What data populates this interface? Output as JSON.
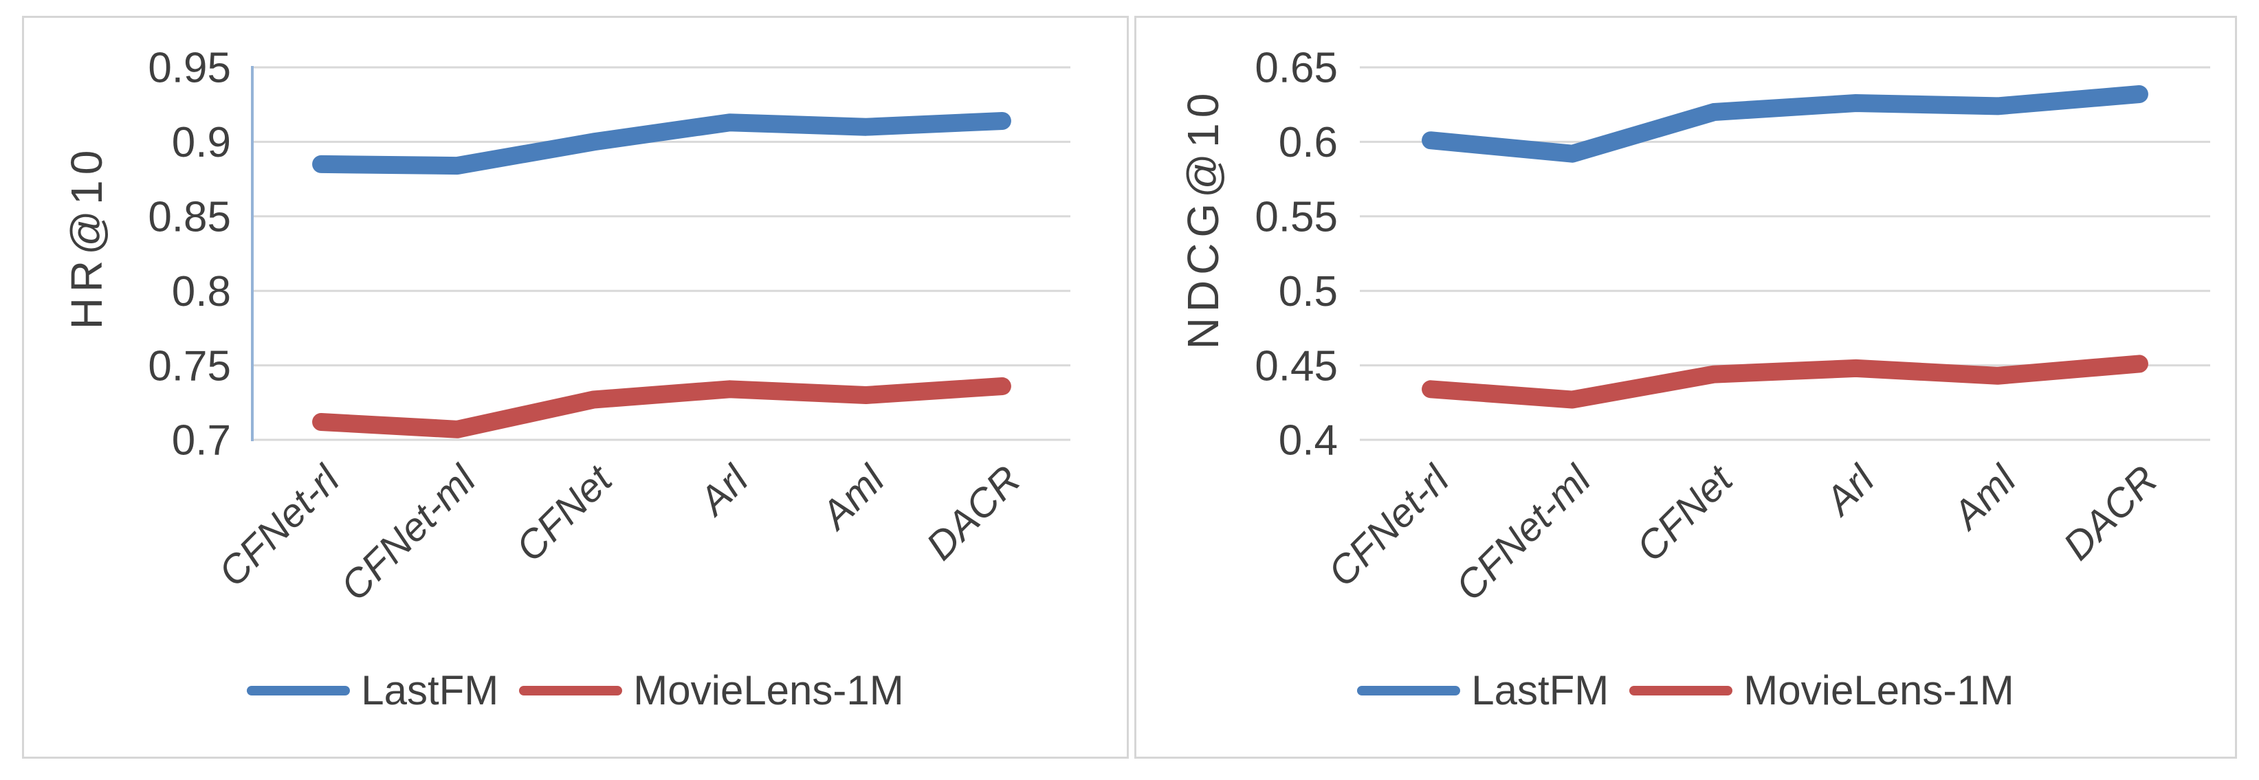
{
  "figure": {
    "colors": {
      "lastfm_blue": "#4A7EBB",
      "movielens_red": "#C1504E",
      "gridline_gray": "#D9D9D9",
      "axis_line_blue": "#95B3D7",
      "text_gray": "#3F3F3F",
      "panel_border_gray": "#D6D6D6"
    }
  },
  "chart_data": [
    {
      "type": "line",
      "title": "",
      "xlabel": "",
      "ylabel": "HR@10",
      "ylim": [
        0.7,
        0.95
      ],
      "grid": true,
      "legend_position": "bottom",
      "categories": [
        "CFNet-rl",
        "CFNet-ml",
        "CFNet",
        "Arl",
        "Aml",
        "DACR"
      ],
      "ytick_labels": [
        "0.95",
        "0.9",
        "0.85",
        "0.8",
        "0.75",
        "0.7"
      ],
      "yticks": [
        0.95,
        0.9,
        0.85,
        0.8,
        0.75,
        0.7
      ],
      "series": [
        {
          "name": "LastFM",
          "color": "#4A7EBB",
          "values": [
            0.885,
            0.884,
            0.9,
            0.913,
            0.91,
            0.914
          ]
        },
        {
          "name": "MovieLens-1M",
          "color": "#C1504E",
          "values": [
            0.712,
            0.707,
            0.727,
            0.734,
            0.73,
            0.736
          ]
        }
      ]
    },
    {
      "type": "line",
      "title": "",
      "xlabel": "",
      "ylabel": "NDCG@10",
      "ylim": [
        0.4,
        0.65
      ],
      "grid": true,
      "legend_position": "bottom",
      "categories": [
        "CFNet-rl",
        "CFNet-ml",
        "CFNet",
        "Arl",
        "Aml",
        "DACR"
      ],
      "ytick_labels": [
        "0.65",
        "0.6",
        "0.55",
        "0.5",
        "0.45",
        "0.4"
      ],
      "yticks": [
        0.65,
        0.6,
        0.55,
        0.5,
        0.45,
        0.4
      ],
      "series": [
        {
          "name": "LastFM",
          "color": "#4A7EBB",
          "values": [
            0.601,
            0.592,
            0.62,
            0.626,
            0.624,
            0.632
          ]
        },
        {
          "name": "MovieLens-1M",
          "color": "#C1504E",
          "values": [
            0.434,
            0.427,
            0.444,
            0.448,
            0.443,
            0.451
          ]
        }
      ]
    }
  ]
}
